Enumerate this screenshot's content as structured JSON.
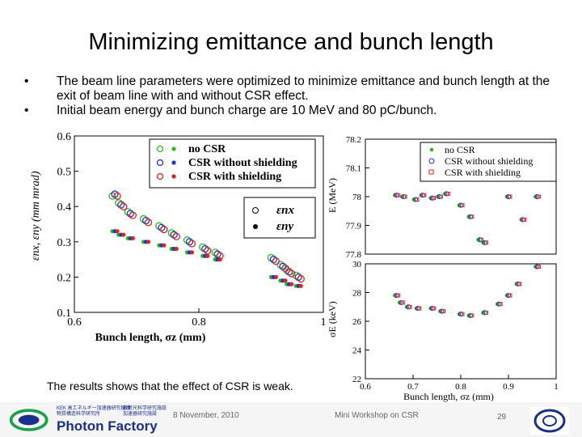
{
  "slide": {
    "title": "Minimizing emittance and bunch length",
    "bullets": [
      "The beam line parameters were optimized to minimize emittance and bunch length at the exit of beam line with and without CSR effect.",
      "Initial beam energy and bunch charge are 10 MeV and 80 pC/bunch."
    ],
    "bullet_symbol": "•",
    "note": "The results shows that the effect of CSR is weak.",
    "footer": {
      "date": "8 November, 2010",
      "workshop": "Mini Workshop on CSR",
      "page": "29",
      "logo_text": "Photon Factory",
      "logo_small_1": "KEK 高エネルギー加速器研究機構",
      "logo_small_2": "物質構造科学研究所",
      "logo_small_3": "放射光科学研究施設",
      "logo_small_4": "加速器研究施設"
    }
  },
  "chart_data": [
    {
      "type": "scatter",
      "title": "",
      "xlabel": "Bunch length, σz (mm)",
      "ylabel": "εnx, εny (mm mrad)",
      "xlim": [
        0.6,
        1.0
      ],
      "ylim": [
        0.1,
        0.6
      ],
      "xticks": [
        "0.6",
        "0.8",
        "1"
      ],
      "yticks": [
        "0.1",
        "0.2",
        "0.3",
        "0.4",
        "0.5",
        "0.6"
      ],
      "legend": [
        "no CSR",
        "CSR without shielding",
        "CSR with shielding"
      ],
      "legend2": [
        "εnx",
        "εny"
      ],
      "colors": {
        "no CSR": "#22bb22",
        "CSR without shielding": "#2233cc",
        "CSR with shielding": "#dd2222"
      },
      "series": [
        {
          "name": "no CSR",
          "x": [
            0.665,
            0.675,
            0.69,
            0.715,
            0.74,
            0.76,
            0.785,
            0.81,
            0.83,
            0.92,
            0.935,
            0.945,
            0.96
          ],
          "y": [
            0.43,
            0.41,
            0.385,
            0.365,
            0.345,
            0.325,
            0.305,
            0.285,
            0.27,
            0.255,
            0.235,
            0.22,
            0.205
          ]
        },
        {
          "name": "CSR without shielding",
          "x": [
            0.665,
            0.675,
            0.69,
            0.715,
            0.74,
            0.76,
            0.785,
            0.81,
            0.83,
            0.92,
            0.935,
            0.945,
            0.96
          ],
          "y": [
            0.435,
            0.405,
            0.38,
            0.36,
            0.34,
            0.32,
            0.3,
            0.28,
            0.265,
            0.25,
            0.23,
            0.215,
            0.2
          ]
        },
        {
          "name": "CSR with shielding",
          "x": [
            0.665,
            0.675,
            0.69,
            0.715,
            0.74,
            0.76,
            0.785,
            0.81,
            0.83,
            0.92,
            0.935,
            0.945,
            0.96
          ],
          "y": [
            0.43,
            0.4,
            0.375,
            0.355,
            0.335,
            0.315,
            0.295,
            0.275,
            0.26,
            0.245,
            0.225,
            0.21,
            0.195
          ]
        },
        {
          "name": "εny",
          "x": [
            0.665,
            0.675,
            0.69,
            0.715,
            0.74,
            0.76,
            0.785,
            0.81,
            0.83,
            0.92,
            0.935,
            0.945,
            0.96
          ],
          "y": [
            0.33,
            0.32,
            0.31,
            0.3,
            0.29,
            0.28,
            0.27,
            0.26,
            0.25,
            0.2,
            0.19,
            0.18,
            0.175
          ]
        }
      ]
    },
    {
      "type": "scatter",
      "xlabel": "",
      "ylabel": "E (MeV)",
      "xlim": [
        0.6,
        1.0
      ],
      "ylim": [
        77.8,
        78.2
      ],
      "yticks": [
        "77.8",
        "77.9",
        "78",
        "78.1",
        "78.2"
      ],
      "legend": [
        "no CSR",
        "CSR without shielding",
        "CSR with shielding"
      ],
      "series": [
        {
          "name": "energy",
          "x": [
            0.665,
            0.68,
            0.705,
            0.72,
            0.74,
            0.755,
            0.77,
            0.8,
            0.82,
            0.84,
            0.85,
            0.9,
            0.93,
            0.96
          ],
          "y": [
            78.005,
            78.0,
            77.99,
            78.005,
            77.995,
            78.0,
            78.01,
            77.97,
            77.93,
            77.85,
            77.84,
            78.0,
            77.92,
            78.0
          ]
        }
      ]
    },
    {
      "type": "scatter",
      "xlabel": "Bunch length, σz (mm)",
      "ylabel": "σE (keV)",
      "xlim": [
        0.6,
        1.0
      ],
      "ylim": [
        22,
        30
      ],
      "xticks": [
        "0.6",
        "0.7",
        "0.8",
        "0.9",
        "1"
      ],
      "yticks": [
        "22",
        "24",
        "26",
        "28",
        "30"
      ],
      "series": [
        {
          "name": "energy spread",
          "x": [
            0.665,
            0.675,
            0.69,
            0.71,
            0.74,
            0.76,
            0.8,
            0.82,
            0.85,
            0.88,
            0.9,
            0.92,
            0.96
          ],
          "y": [
            27.8,
            27.3,
            27.0,
            26.9,
            26.9,
            26.7,
            26.5,
            26.4,
            26.6,
            27.2,
            27.8,
            28.6,
            29.8
          ]
        }
      ]
    }
  ]
}
